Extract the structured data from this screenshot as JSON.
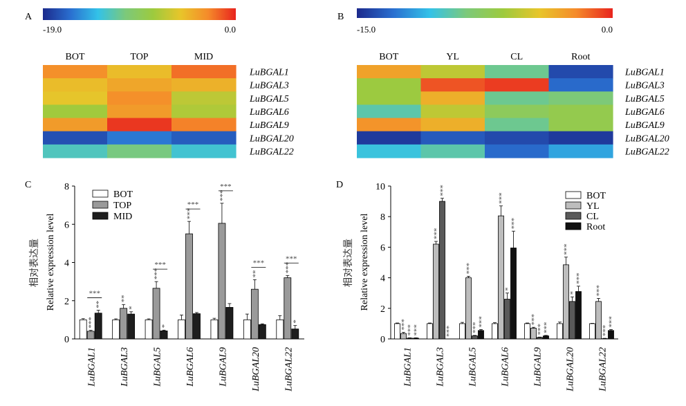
{
  "panels": [
    {
      "letter": "A"
    },
    {
      "letter": "B"
    },
    {
      "letter": "C"
    },
    {
      "letter": "D"
    }
  ],
  "chart_data": [
    {
      "panel": "A",
      "type": "heatmap",
      "colorbar": {
        "min_label": "-19.0",
        "max_label": "0.0",
        "range": [
          -19,
          0
        ],
        "colors": [
          "#1c2a8c",
          "#2a6fd0",
          "#33c2e8",
          "#7cc97a",
          "#9dca3e",
          "#e8c52a",
          "#f58a2a",
          "#e8241e"
        ]
      },
      "columns": [
        "BOT",
        "TOP",
        "MID"
      ],
      "rows": [
        "LuBGAL1",
        "LuBGAL3",
        "LuBGAL5",
        "LuBGAL6",
        "LuBGAL9",
        "LuBGAL20",
        "LuBGAL22"
      ],
      "values": [
        [
          -3.0,
          -5.0,
          -2.0
        ],
        [
          -5.0,
          -4.0,
          -4.5
        ],
        [
          -5.5,
          -3.0,
          -7.0
        ],
        [
          -8.0,
          -3.5,
          -7.5
        ],
        [
          -3.5,
          -0.5,
          -2.5
        ],
        [
          -17.5,
          -16.0,
          -17.0
        ],
        [
          -12.5,
          -11.0,
          -13.0
        ]
      ]
    },
    {
      "panel": "B",
      "type": "heatmap",
      "colorbar": {
        "min_label": "-15.0",
        "max_label": "0.0",
        "range": [
          -15,
          0
        ],
        "colors": [
          "#1c2a8c",
          "#2a6fd0",
          "#33c2e8",
          "#7cc97a",
          "#9dca3e",
          "#e8c52a",
          "#f58a2a",
          "#e8241e"
        ]
      },
      "columns": [
        "BOT",
        "YL",
        "CL",
        "Root"
      ],
      "rows": [
        "LuBGAL1",
        "LuBGAL3",
        "LuBGAL5",
        "LuBGAL6",
        "LuBGAL9",
        "LuBGAL20",
        "LuBGAL22"
      ],
      "values": [
        [
          -3.0,
          -5.5,
          -9.0,
          -14.0
        ],
        [
          -6.5,
          -1.0,
          -0.5,
          -13.0
        ],
        [
          -6.5,
          -3.5,
          -9.0,
          -8.5
        ],
        [
          -9.5,
          -5.5,
          -7.5,
          -7.0
        ],
        [
          -2.5,
          -3.5,
          -9.0,
          -7.0
        ],
        [
          -14.5,
          -13.5,
          -14.0,
          -14.5
        ],
        [
          -10.5,
          -9.5,
          -13.0,
          -11.5
        ]
      ]
    },
    {
      "panel": "C",
      "type": "bar",
      "ylabel": "相对表达量",
      "ylabel2": "Relative expression level",
      "ylim": [
        0,
        8
      ],
      "yticks": [
        "0",
        "2",
        "4",
        "6",
        "8"
      ],
      "categories": [
        "LuBGAL1",
        "LuBGAL3",
        "LuBGAL5",
        "LuBGAL6",
        "LuBGAL9",
        "LuBGAL20",
        "LuBGAL22"
      ],
      "legend_position": "top-left",
      "series": [
        {
          "name": "BOT",
          "color": "#ffffff",
          "values": [
            1.0,
            1.0,
            1.0,
            1.0,
            1.0,
            1.0,
            1.0
          ],
          "errors": [
            0.06,
            0.05,
            0.05,
            0.25,
            0.08,
            0.3,
            0.22
          ],
          "sig": [
            "",
            "",
            "",
            "",
            "",
            "",
            ""
          ]
        },
        {
          "name": "TOP",
          "color": "#9a9a9a",
          "values": [
            0.4,
            1.6,
            2.65,
            5.5,
            6.05,
            2.6,
            3.2
          ],
          "errors": [
            0.05,
            0.2,
            0.35,
            0.65,
            1.05,
            0.5,
            0.12
          ],
          "sig": [
            "***",
            "**",
            "***",
            "***",
            "***",
            "**",
            "***"
          ]
        },
        {
          "name": "MID",
          "color": "#1e1e1e",
          "values": [
            1.35,
            1.3,
            0.42,
            1.32,
            1.65,
            0.75,
            0.52
          ],
          "errors": [
            0.15,
            0.12,
            0.04,
            0.06,
            0.2,
            0.04,
            0.18
          ],
          "sig": [
            "**",
            "*",
            "*",
            "",
            "",
            "",
            "*"
          ]
        }
      ],
      "brackets": [
        {
          "index": 0,
          "label": "***"
        },
        {
          "index": 2,
          "label": "***"
        },
        {
          "index": 3,
          "label": "***"
        },
        {
          "index": 4,
          "label": "***"
        },
        {
          "index": 5,
          "label": "***"
        },
        {
          "index": 6,
          "label": "***"
        }
      ]
    },
    {
      "panel": "D",
      "type": "bar",
      "ylabel": "相对表达量",
      "ylabel2": "Relative expression level",
      "ylim": [
        0,
        10
      ],
      "yticks": [
        "0",
        "2",
        "4",
        "6",
        "8",
        "10"
      ],
      "categories": [
        "LuBGAL1",
        "LuBGAL3",
        "LuBGAL5",
        "LuBGAL6",
        "LuBGAL9",
        "LuBGAL20",
        "LuBGAL22"
      ],
      "legend_position": "top-right",
      "series": [
        {
          "name": "BOT",
          "color": "#ffffff",
          "values": [
            1.0,
            1.0,
            1.0,
            1.0,
            1.0,
            1.0,
            1.0
          ],
          "errors": [
            0.04,
            0.04,
            0.08,
            0.06,
            0.04,
            0.1,
            0.02
          ],
          "sig": [
            "",
            "",
            "",
            "",
            "",
            "",
            ""
          ]
        },
        {
          "name": "YL",
          "color": "#bdbdbd",
          "values": [
            0.35,
            6.2,
            4.0,
            8.05,
            0.7,
            4.85,
            2.45
          ],
          "errors": [
            0.08,
            0.18,
            0.1,
            0.65,
            0.06,
            0.5,
            0.2
          ],
          "sig": [
            "***",
            "***",
            "***",
            "***",
            "***",
            "***",
            "***"
          ]
        },
        {
          "name": "CL",
          "color": "#5a5a5a",
          "values": [
            0.05,
            9.0,
            0.2,
            2.6,
            0.1,
            2.45,
            0.02
          ],
          "errors": [
            0.02,
            0.2,
            0.03,
            0.4,
            0.02,
            0.3,
            0.02
          ],
          "sig": [
            "***",
            "***",
            "***",
            "*",
            "***",
            "*",
            "***"
          ]
        },
        {
          "name": "Root",
          "color": "#111111",
          "values": [
            0.05,
            0.0,
            0.55,
            5.95,
            0.2,
            3.1,
            0.55
          ],
          "errors": [
            0.02,
            0.0,
            0.06,
            1.1,
            0.03,
            0.35,
            0.06
          ],
          "sig": [
            "***",
            "***",
            "***",
            "***",
            "***",
            "***",
            "***"
          ]
        }
      ],
      "brackets": []
    }
  ]
}
